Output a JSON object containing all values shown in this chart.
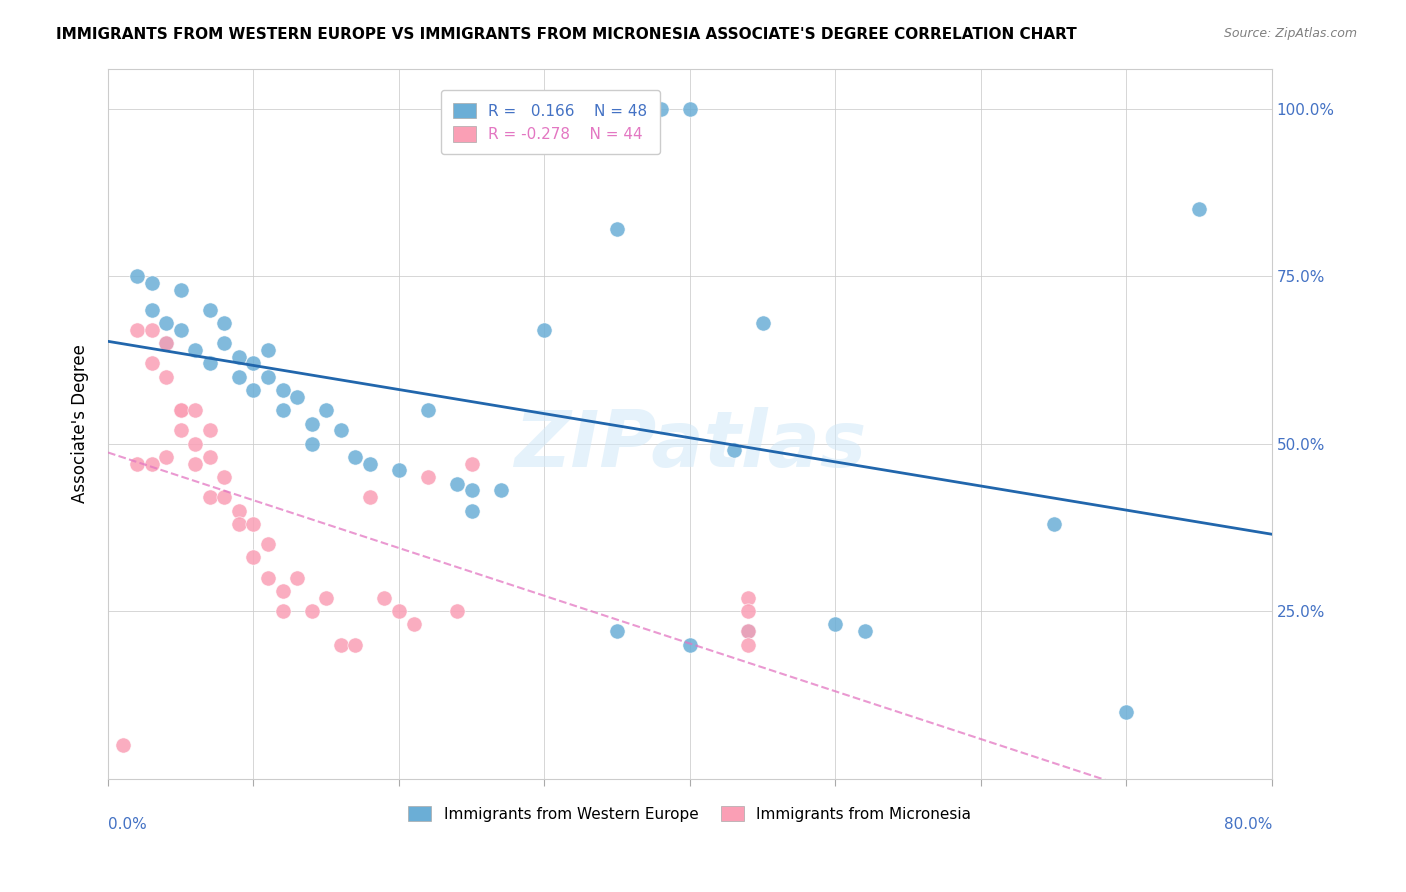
{
  "title": "IMMIGRANTS FROM WESTERN EUROPE VS IMMIGRANTS FROM MICRONESIA ASSOCIATE'S DEGREE CORRELATION CHART",
  "source": "Source: ZipAtlas.com",
  "ylabel": "Associate's Degree",
  "blue_R": 0.166,
  "blue_N": 48,
  "pink_R": -0.278,
  "pink_N": 44,
  "blue_label": "Immigrants from Western Europe",
  "pink_label": "Immigrants from Micronesia",
  "blue_color": "#6baed6",
  "pink_color": "#fa9fb5",
  "blue_line_color": "#2166ac",
  "pink_line_color": "#e377c2",
  "watermark": "ZIPatlas",
  "blue_scatter_x": [
    0.28,
    0.35,
    0.38,
    0.4,
    0.45,
    0.02,
    0.03,
    0.03,
    0.04,
    0.04,
    0.05,
    0.05,
    0.06,
    0.07,
    0.07,
    0.08,
    0.08,
    0.09,
    0.09,
    0.1,
    0.1,
    0.11,
    0.11,
    0.12,
    0.12,
    0.13,
    0.14,
    0.14,
    0.15,
    0.16,
    0.17,
    0.18,
    0.2,
    0.22,
    0.24,
    0.25,
    0.25,
    0.27,
    0.3,
    0.35,
    0.4,
    0.43,
    0.44,
    0.5,
    0.52,
    0.65,
    0.7,
    0.75
  ],
  "blue_scatter_y": [
    100,
    82,
    100,
    100,
    68,
    75,
    74,
    70,
    68,
    65,
    73,
    67,
    64,
    70,
    62,
    68,
    65,
    63,
    60,
    62,
    58,
    64,
    60,
    58,
    55,
    57,
    53,
    50,
    55,
    52,
    48,
    47,
    46,
    55,
    44,
    43,
    40,
    43,
    67,
    22,
    20,
    49,
    22,
    23,
    22,
    38,
    10,
    85
  ],
  "pink_scatter_x": [
    0.01,
    0.02,
    0.02,
    0.03,
    0.03,
    0.03,
    0.04,
    0.04,
    0.04,
    0.05,
    0.05,
    0.05,
    0.06,
    0.06,
    0.06,
    0.07,
    0.07,
    0.07,
    0.08,
    0.08,
    0.09,
    0.09,
    0.1,
    0.1,
    0.11,
    0.11,
    0.12,
    0.12,
    0.13,
    0.14,
    0.15,
    0.16,
    0.17,
    0.18,
    0.19,
    0.2,
    0.21,
    0.22,
    0.24,
    0.25,
    0.44,
    0.44,
    0.44,
    0.44
  ],
  "pink_scatter_y": [
    5,
    67,
    47,
    67,
    62,
    47,
    65,
    60,
    48,
    55,
    55,
    52,
    55,
    50,
    47,
    52,
    48,
    42,
    45,
    42,
    40,
    38,
    38,
    33,
    35,
    30,
    28,
    25,
    30,
    25,
    27,
    20,
    20,
    42,
    27,
    25,
    23,
    45,
    25,
    47,
    27,
    25,
    22,
    20
  ]
}
